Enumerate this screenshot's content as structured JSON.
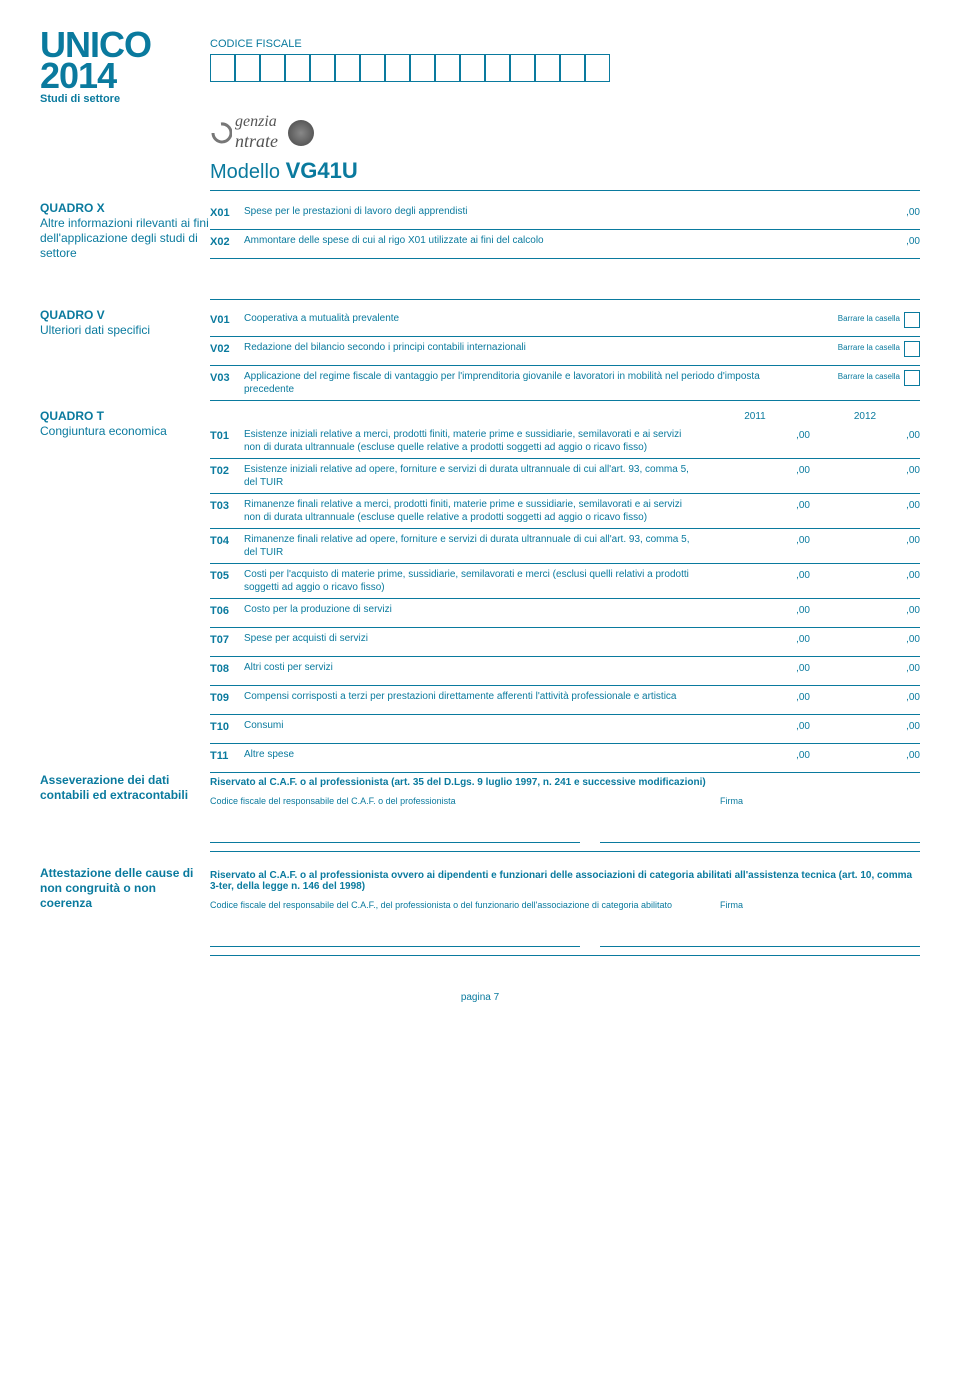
{
  "header": {
    "unico": "UNICO",
    "year": "2014",
    "studi": "Studi di settore",
    "cf_label": "CODICE FISCALE",
    "cf_box_count": 16,
    "agenzia": "genzia",
    "ntrate": "ntrate",
    "modello_label": "Modello ",
    "modello_code": "VG41U"
  },
  "quadro_x": {
    "title": "QUADRO X",
    "subtitle": "Altre informazioni rilevanti ai fini dell'applicazione degli studi di settore",
    "rows": [
      {
        "code": "X01",
        "desc": "Spese per le prestazioni di lavoro degli apprendisti",
        "v1": ",00"
      },
      {
        "code": "X02",
        "desc": "Ammontare delle spese di cui al rigo X01 utilizzate ai fini del calcolo",
        "v1": ",00"
      }
    ]
  },
  "quadro_v": {
    "title": "QUADRO V",
    "subtitle": "Ulteriori dati specifici",
    "barrare": "Barrare la casella",
    "rows": [
      {
        "code": "V01",
        "desc": "Cooperativa a mutualità prevalente"
      },
      {
        "code": "V02",
        "desc": "Redazione del bilancio secondo i principi contabili internazionali"
      },
      {
        "code": "V03",
        "desc": "Applicazione del regime fiscale di vantaggio per l'imprenditoria giovanile e lavoratori in mobilità nel periodo d'imposta precedente"
      }
    ]
  },
  "quadro_t": {
    "title": "QUADRO T",
    "subtitle": "Congiuntura economica",
    "year1": "2011",
    "year2": "2012",
    "rows": [
      {
        "code": "T01",
        "desc": "Esistenze iniziali relative a merci, prodotti finiti, materie prime e sussidiarie, semilavorati e ai servizi non di durata ultrannuale (escluse quelle relative a prodotti soggetti ad aggio o ricavo fisso)",
        "v1": ",00",
        "v2": ",00"
      },
      {
        "code": "T02",
        "desc": "Esistenze iniziali relative ad opere, forniture e servizi di durata ultrannuale di cui all'art. 93, comma 5, del TUIR",
        "v1": ",00",
        "v2": ",00"
      },
      {
        "code": "T03",
        "desc": "Rimanenze finali relative a merci, prodotti finiti, materie prime e sussidiarie, semilavorati e ai servizi non di durata ultrannuale (escluse quelle relative a prodotti soggetti ad aggio o ricavo fisso)",
        "v1": ",00",
        "v2": ",00"
      },
      {
        "code": "T04",
        "desc": "Rimanenze finali relative ad opere, forniture e servizi di durata ultrannuale di cui all'art. 93, comma 5, del TUIR",
        "v1": ",00",
        "v2": ",00"
      },
      {
        "code": "T05",
        "desc": "Costi per l'acquisto di materie prime, sussidiarie, semilavorati e merci (esclusi quelli relativi a prodotti soggetti ad aggio o ricavo fisso)",
        "v1": ",00",
        "v2": ",00"
      },
      {
        "code": "T06",
        "desc": "Costo per la produzione di servizi",
        "v1": ",00",
        "v2": ",00"
      },
      {
        "code": "T07",
        "desc": "Spese per acquisti di servizi",
        "v1": ",00",
        "v2": ",00"
      },
      {
        "code": "T08",
        "desc": "Altri costi per servizi",
        "v1": ",00",
        "v2": ",00"
      },
      {
        "code": "T09",
        "desc": "Compensi corrisposti a terzi per prestazioni direttamente afferenti l'attività professionale e artistica",
        "v1": ",00",
        "v2": ",00"
      },
      {
        "code": "T10",
        "desc": "Consumi",
        "v1": ",00",
        "v2": ",00"
      },
      {
        "code": "T11",
        "desc": "Altre spese",
        "v1": ",00",
        "v2": ",00"
      }
    ]
  },
  "asseverazione": {
    "title": "Asseverazione dei dati contabili ed extracontabili",
    "riservato": "Riservato al C.A.F. o al professionista (art. 35 del D.Lgs. 9 luglio 1997, n. 241 e successive modificazioni)",
    "codice": "Codice fiscale del responsabile del C.A.F. o del professionista",
    "firma": "Firma"
  },
  "attestazione": {
    "title": "Attestazione delle cause di non congruità o non coerenza",
    "riservato": "Riservato al C.A.F. o al professionista ovvero ai dipendenti e funzionari delle associazioni di categoria abilitati all'assistenza tecnica (art. 10, comma 3-ter, della legge n. 146 del 1998)",
    "codice": "Codice fiscale del responsabile del C.A.F., del professionista o del funzionario dell'associazione di categoria abilitato",
    "firma": "Firma"
  },
  "page_num": "pagina 7",
  "colors": {
    "primary": "#0a7a9e",
    "background": "#ffffff"
  }
}
